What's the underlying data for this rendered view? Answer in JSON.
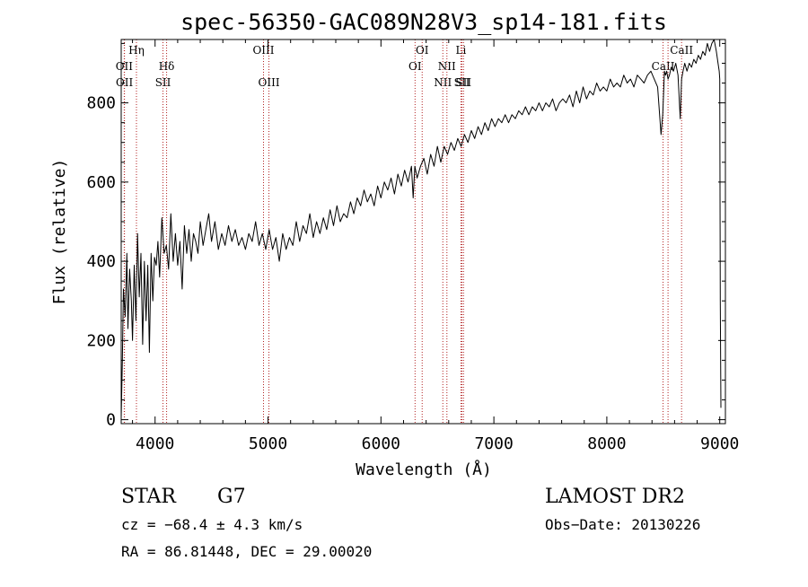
{
  "chart_data": {
    "type": "line",
    "title": "spec-56350-GAC089N28V3_sp14-181.fits",
    "xlabel": "Wavelength (Å)",
    "ylabel": "Flux (relative)",
    "xlim": [
      3700,
      9050
    ],
    "ylim": [
      -10,
      960
    ],
    "xticks": [
      {
        "value": 4000,
        "label": "4000"
      },
      {
        "value": 5000,
        "label": "5000"
      },
      {
        "value": 6000,
        "label": "6000"
      },
      {
        "value": 7000,
        "label": "7000"
      },
      {
        "value": 8000,
        "label": "8000"
      },
      {
        "value": 9000,
        "label": "9000"
      }
    ],
    "yticks": [
      {
        "value": 0,
        "label": "0"
      },
      {
        "value": 200,
        "label": "200"
      },
      {
        "value": 400,
        "label": "400"
      },
      {
        "value": 600,
        "label": "600"
      },
      {
        "value": 800,
        "label": "800"
      }
    ],
    "grid": false,
    "line_color": "#000000",
    "marker_color": "#b22222",
    "series": [
      {
        "x": [
          3700,
          3710,
          3720,
          3735,
          3750,
          3760,
          3775,
          3790,
          3800,
          3815,
          3830,
          3845,
          3860,
          3875,
          3890,
          3905,
          3920,
          3935,
          3950,
          3965,
          3980,
          3995,
          4010,
          4025,
          4040,
          4060,
          4080,
          4100,
          4120,
          4140,
          4160,
          4180,
          4200,
          4220,
          4240,
          4260,
          4280,
          4300,
          4320,
          4340,
          4360,
          4380,
          4400,
          4425,
          4450,
          4475,
          4500,
          4530,
          4560,
          4590,
          4620,
          4650,
          4680,
          4710,
          4740,
          4770,
          4800,
          4830,
          4860,
          4890,
          4920,
          4950,
          4980,
          5010,
          5040,
          5070,
          5100,
          5130,
          5160,
          5190,
          5220,
          5250,
          5280,
          5310,
          5340,
          5370,
          5400,
          5430,
          5460,
          5490,
          5520,
          5550,
          5580,
          5610,
          5640,
          5670,
          5700,
          5730,
          5760,
          5790,
          5820,
          5850,
          5880,
          5910,
          5940,
          5970,
          6000,
          6030,
          6060,
          6090,
          6120,
          6150,
          6180,
          6210,
          6240,
          6270,
          6285,
          6300,
          6320,
          6350,
          6380,
          6410,
          6440,
          6470,
          6500,
          6530,
          6560,
          6590,
          6620,
          6650,
          6680,
          6710,
          6740,
          6770,
          6800,
          6830,
          6860,
          6890,
          6920,
          6950,
          6980,
          7010,
          7040,
          7070,
          7100,
          7130,
          7160,
          7190,
          7220,
          7250,
          7280,
          7310,
          7340,
          7370,
          7400,
          7430,
          7460,
          7490,
          7520,
          7550,
          7580,
          7610,
          7640,
          7670,
          7700,
          7730,
          7760,
          7790,
          7820,
          7850,
          7880,
          7910,
          7940,
          7970,
          8000,
          8030,
          8060,
          8090,
          8120,
          8150,
          8180,
          8210,
          8240,
          8270,
          8300,
          8330,
          8360,
          8390,
          8420,
          8450,
          8480,
          8495,
          8510,
          8520,
          8530,
          8542,
          8555,
          8570,
          8590,
          8610,
          8630,
          8650,
          8662,
          8675,
          8690,
          8710,
          8730,
          8750,
          8770,
          8790,
          8810,
          8830,
          8850,
          8870,
          8890,
          8910,
          8930,
          8950,
          8970,
          8985,
          8995,
          9000,
          9005,
          9010
        ],
        "y": [
          5,
          150,
          330,
          260,
          420,
          230,
          380,
          300,
          200,
          390,
          250,
          470,
          310,
          420,
          190,
          400,
          250,
          390,
          170,
          420,
          300,
          410,
          390,
          450,
          360,
          510,
          420,
          440,
          380,
          520,
          400,
          470,
          390,
          450,
          330,
          490,
          420,
          480,
          400,
          470,
          450,
          420,
          500,
          440,
          480,
          520,
          450,
          500,
          430,
          470,
          440,
          490,
          450,
          480,
          440,
          460,
          430,
          470,
          450,
          500,
          440,
          470,
          430,
          480,
          430,
          460,
          400,
          470,
          430,
          460,
          440,
          500,
          450,
          490,
          470,
          520,
          460,
          500,
          470,
          510,
          480,
          530,
          490,
          540,
          500,
          520,
          510,
          550,
          520,
          560,
          540,
          580,
          550,
          570,
          540,
          590,
          560,
          600,
          580,
          610,
          570,
          620,
          590,
          630,
          600,
          640,
          560,
          640,
          610,
          640,
          660,
          620,
          670,
          640,
          690,
          650,
          690,
          670,
          700,
          680,
          710,
          690,
          720,
          700,
          730,
          710,
          740,
          720,
          750,
          730,
          760,
          740,
          760,
          750,
          770,
          750,
          770,
          760,
          780,
          770,
          790,
          770,
          790,
          780,
          800,
          780,
          800,
          790,
          810,
          780,
          800,
          810,
          800,
          820,
          790,
          830,
          800,
          840,
          810,
          830,
          820,
          850,
          830,
          840,
          830,
          860,
          840,
          850,
          840,
          870,
          850,
          860,
          840,
          870,
          860,
          850,
          870,
          880,
          860,
          840,
          720,
          770,
          880,
          870,
          880,
          860,
          870,
          890,
          880,
          900,
          870,
          760,
          860,
          880,
          900,
          880,
          900,
          890,
          910,
          900,
          920,
          910,
          930,
          920,
          950,
          930,
          950,
          960,
          930,
          900,
          880,
          860,
          300,
          30
        ]
      }
    ],
    "spectral_lines": [
      {
        "x": 3727,
        "label": "OII",
        "row": 1
      },
      {
        "x": 3729,
        "label": "OII",
        "row": 2
      },
      {
        "x": 3835,
        "label": "Hη",
        "row": 0
      },
      {
        "x": 4070,
        "label": "SII",
        "row": 2
      },
      {
        "x": 4102,
        "label": "Hδ",
        "row": 1
      },
      {
        "x": 4960,
        "label": "OIII",
        "row": 0
      },
      {
        "x": 5008,
        "label": "OIII",
        "row": 2
      },
      {
        "x": 6302,
        "label": "OI",
        "row": 1
      },
      {
        "x": 6365,
        "label": "OI",
        "row": 0
      },
      {
        "x": 6548,
        "label": "NII",
        "row": 2
      },
      {
        "x": 6584,
        "label": "NII",
        "row": 1
      },
      {
        "x": 6708,
        "label": "Li",
        "row": 0
      },
      {
        "x": 6717,
        "label": "SII",
        "row": 2
      },
      {
        "x": 6731,
        "label": "SII",
        "row": 2
      },
      {
        "x": 8498,
        "label": "CaII",
        "row": 1
      },
      {
        "x": 8542,
        "label": "",
        "row": 1
      },
      {
        "x": 8662,
        "label": "CaII",
        "row": 0
      }
    ]
  },
  "info": {
    "object_class": "STAR",
    "subclass": "G7",
    "survey": "LAMOST DR2",
    "cz": "cz = −68.4 ± 4.3 km/s",
    "obs_date": "Obs−Date: 20130226",
    "coords": "RA =  86.81448, DEC =  29.00020"
  }
}
